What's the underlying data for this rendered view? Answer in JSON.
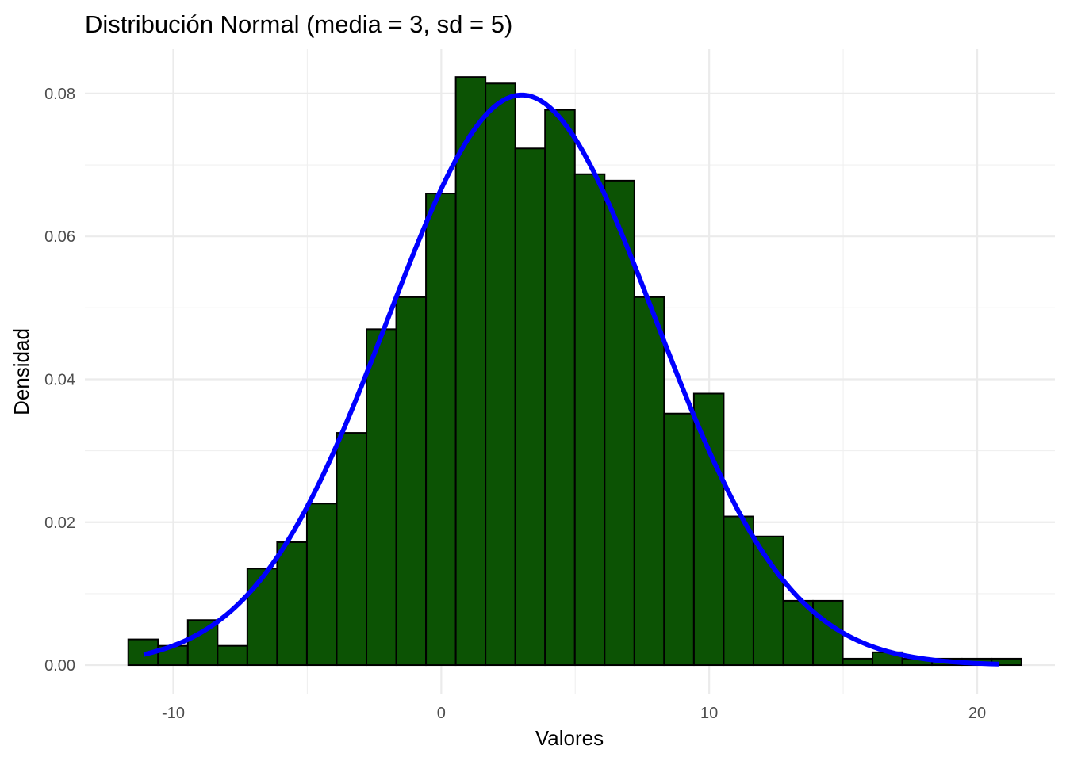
{
  "chart_data": {
    "type": "bar",
    "title": "Distribución Normal (media = 3, sd = 5)",
    "xlabel": "Valores",
    "ylabel": "Densidad",
    "xlim": [
      -13.3,
      22.9
    ],
    "ylim": [
      -0.0041,
      0.0862
    ],
    "x_ticks": [
      -10,
      0,
      10,
      20
    ],
    "x_tick_labels": [
      "-10",
      "0",
      "10",
      "20"
    ],
    "y_ticks": [
      0.0,
      0.02,
      0.04,
      0.06,
      0.08
    ],
    "y_tick_labels": [
      "0.00",
      "0.02",
      "0.04",
      "0.06",
      "0.08"
    ],
    "grid": true,
    "histogram": {
      "bin_start": -11.68,
      "bin_width": 1.111,
      "densities": [
        0.0036,
        0.0027,
        0.0063,
        0.0027,
        0.0135,
        0.0172,
        0.0226,
        0.0325,
        0.047,
        0.0515,
        0.066,
        0.0823,
        0.0814,
        0.0723,
        0.0777,
        0.0687,
        0.0678,
        0.0515,
        0.0352,
        0.038,
        0.0208,
        0.018,
        0.009,
        0.009,
        0.0009,
        0.0018,
        0.0009,
        0.0009,
        0.0009,
        0.0009
      ],
      "fill_color": "#0c5304",
      "border_color": "#000000"
    },
    "density_curve": {
      "distribution": "normal",
      "mean": 3,
      "sd": 5,
      "x_range": [
        -11.1,
        20.8
      ],
      "color": "#0000ff"
    }
  }
}
